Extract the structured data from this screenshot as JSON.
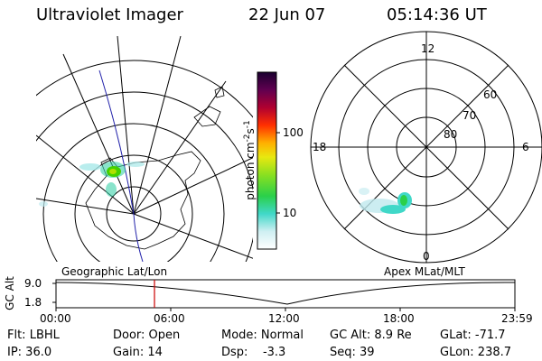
{
  "header": {
    "instrument": "Ultraviolet Imager",
    "date": "22 Jun 07",
    "time": "05:14:36 UT"
  },
  "geo_panel": {
    "label": "Geographic Lat/Lon"
  },
  "apex_panel": {
    "label": "Apex MLat/MLT",
    "mlt_labels": {
      "top": "12",
      "left": "18",
      "right": "6",
      "bottom": "0"
    },
    "lat_labels": [
      "60",
      "70",
      "80"
    ]
  },
  "colorbar": {
    "unit_label": "photon cm",
    "unit_sup1": "-2",
    "unit_s": "s",
    "unit_sup2": "-1",
    "tick_100": "100",
    "tick_10": "10"
  },
  "altitude_plot": {
    "ylabel": "GC Alt",
    "y_ticks": [
      "9.0",
      "1.8"
    ],
    "x_ticks": [
      "00:00",
      "06:00",
      "12:00",
      "18:00",
      "23:59"
    ]
  },
  "status": {
    "row1": [
      {
        "key": "filter",
        "text": "Flt: LBHL"
      },
      {
        "key": "door",
        "text": "Door: Open"
      },
      {
        "key": "mode",
        "text": "Mode: Normal"
      },
      {
        "key": "gcalt",
        "text": "GC Alt: 8.9 Re"
      },
      {
        "key": "glat",
        "text": "GLat: -71.7"
      }
    ],
    "row2": [
      {
        "key": "ip",
        "text": "IP: 36.0"
      },
      {
        "key": "gain",
        "text": "Gain: 14"
      },
      {
        "key": "dsp",
        "text": "Dsp:    -3.3"
      },
      {
        "key": "seq",
        "text": "Seq: 39"
      },
      {
        "key": "glon",
        "text": "GLon: 238.7"
      }
    ]
  },
  "colors": {
    "ink": "#000000",
    "marker": "#cc0000",
    "meridian": "#2222aa"
  }
}
